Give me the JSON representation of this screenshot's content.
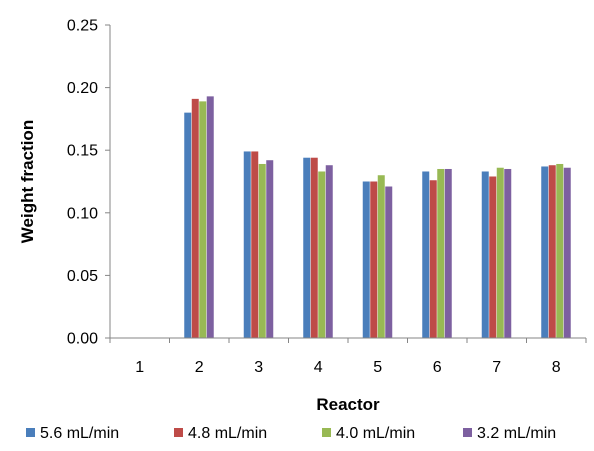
{
  "chart_data": {
    "type": "bar",
    "title": "",
    "xlabel": "Reactor",
    "ylabel": "Weight fraction",
    "categories": [
      "1",
      "2",
      "3",
      "4",
      "5",
      "6",
      "7",
      "8"
    ],
    "ylim": [
      0,
      0.25
    ],
    "yticks": [
      "0.00",
      "0.05",
      "0.10",
      "0.15",
      "0.20",
      "0.25"
    ],
    "grid": false,
    "legend_position": "bottom",
    "series": [
      {
        "name": "5.6 mL/min",
        "color": "#4a7ebb",
        "values": [
          0,
          0.18,
          0.149,
          0.144,
          0.125,
          0.133,
          0.133,
          0.137
        ]
      },
      {
        "name": "4.8 mL/min",
        "color": "#be4b48",
        "values": [
          0,
          0.191,
          0.149,
          0.144,
          0.125,
          0.126,
          0.129,
          0.138
        ]
      },
      {
        "name": "4.0 mL/min",
        "color": "#98b954",
        "values": [
          0,
          0.189,
          0.139,
          0.133,
          0.13,
          0.135,
          0.136,
          0.139
        ]
      },
      {
        "name": "3.2 mL/min",
        "color": "#7d60a0",
        "values": [
          0,
          0.193,
          0.142,
          0.138,
          0.121,
          0.135,
          0.135,
          0.136
        ]
      }
    ]
  }
}
